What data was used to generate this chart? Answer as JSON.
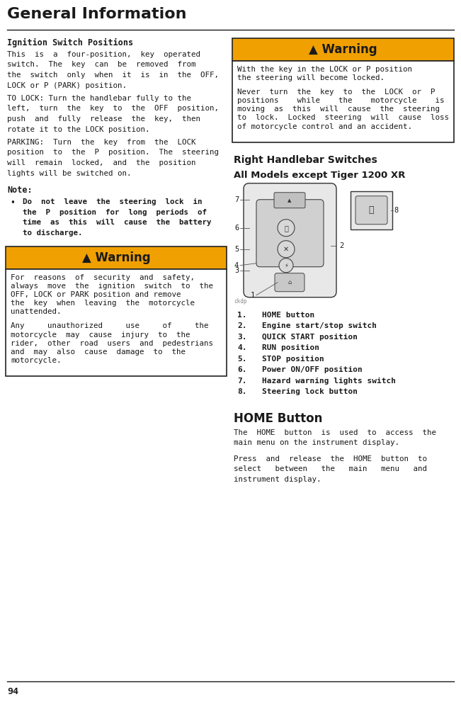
{
  "title": "General Information",
  "page_number": "94",
  "bg_color": "#ffffff",
  "text_color": "#1a1a1a",
  "warning_orange": "#f0a000",
  "warning_border": "#222222",
  "section_heading": "Ignition Switch Positions",
  "para1_lines": [
    "This  is  a  four-position,  key  operated",
    "switch.  The  key  can  be  removed  from",
    "the  switch  only  when  it  is  in  the  OFF,",
    "LOCK or P (PARK) position."
  ],
  "para2_lines": [
    "TO LOCK: Turn the handlebar fully to the",
    "left,  turn  the  key  to  the  OFF  position,",
    "push  and  fully  release  the  key,  then",
    "rotate it to the LOCK position."
  ],
  "para3_lines": [
    "PARKING:  Turn  the  key  from  the  LOCK",
    "position  to  the  P  position.  The  steering",
    "will  remain  locked,  and  the  position",
    "lights will be switched on."
  ],
  "note_bullet_lines": [
    "Do  not  leave  the  steering  lock  in",
    "the  P  position  for  long  periods  of",
    "time  as  this  will  cause  the  battery",
    "to discharge."
  ],
  "warn1_lines1": [
    "For  reasons  of  security  and  safety,",
    "always  move  the  ignition  switch  to  the",
    "OFF, LOCK or PARK position and remove",
    "the  key  when  leaving  the  motorcycle",
    "unattended."
  ],
  "warn1_lines2": [
    "Any     unauthorized     use     of     the",
    "motorcycle  may  cause  injury  to  the",
    "rider,  other  road  users  and  pedestrians",
    "and  may  also  cause  damage  to  the",
    "motorcycle."
  ],
  "warn2_lines1": [
    "With the key in the LOCK or P position",
    "the steering will become locked."
  ],
  "warn2_lines2": [
    "Never  turn  the  key  to  the  LOCK  or  P",
    "positions    while    the    motorcycle    is",
    "moving  as  this  will  cause  the  steering",
    "to  lock.  Locked  steering  will  cause  loss",
    "of motorcycle control and an accident."
  ],
  "right_section1": "Right Handlebar Switches",
  "right_section2": "All Models except Tiger 1200 XR",
  "list_items": [
    "HOME button",
    "Engine start/stop switch",
    "QUICK START position",
    "RUN position",
    "STOP position",
    "Power ON/OFF position",
    "Hazard warning lights switch",
    "Steering lock button"
  ],
  "home_button_title": "HOME Button",
  "home_lines1": [
    "The  HOME  button  is  used  to  access  the",
    "main menu on the instrument display."
  ],
  "home_lines2": [
    "Press  and  release  the  HOME  button  to",
    "select   between   the   main   menu   and",
    "instrument display."
  ]
}
